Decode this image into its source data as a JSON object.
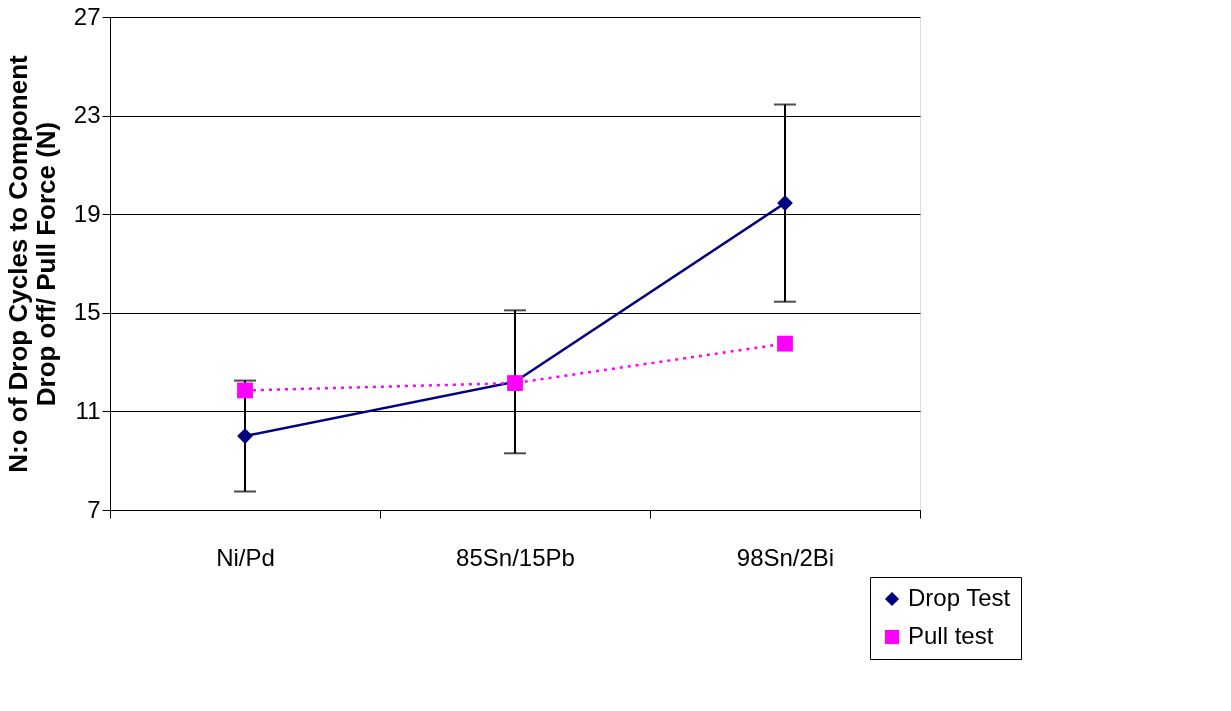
{
  "chart_data": {
    "type": "line",
    "ylabel": "N:o of Drop Cycles to Component\nDrop off/ Pull Force (N)",
    "categories": [
      "Ni/Pd",
      "85Sn/15Pb",
      "98Sn/2Bi"
    ],
    "series": [
      {
        "name": "Drop Test",
        "color": "#000080",
        "values": [
          10.0,
          12.2,
          19.45
        ],
        "errors": [
          2.25,
          2.9,
          4.0
        ],
        "marker": "diamond",
        "line_style": "solid"
      },
      {
        "name": "Pull test",
        "color": "#ff00ff",
        "values": [
          11.85,
          12.15,
          13.75
        ],
        "marker": "square",
        "line_style": "dotted"
      }
    ],
    "ylim": [
      7,
      27
    ],
    "yticks": [
      7,
      11,
      15,
      19,
      23,
      27
    ],
    "grid": "y",
    "legend": "bottom right"
  }
}
